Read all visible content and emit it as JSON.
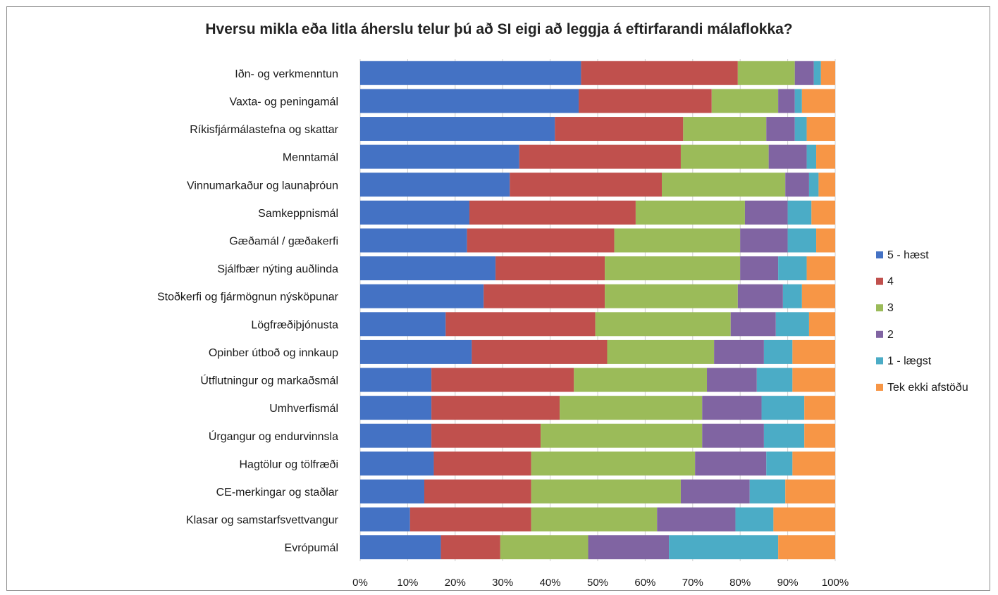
{
  "chart_data": {
    "type": "bar",
    "orientation": "horizontal",
    "stacked": "percent",
    "title": "Hversu mikla eða litla áherslu telur þú að SI eigi að leggja á eftirfarandi málaflokka?",
    "categories": [
      "Iðn- og verkmenntun",
      "Vaxta- og peningamál",
      "Ríkisfjármálastefna og skattar",
      "Menntamál",
      "Vinnumarkaður og launaþróun",
      "Samkeppnismál",
      "Gæðamál / gæðakerfi",
      "Sjálfbær nýting auðlinda",
      "Stoðkerfi og fjármögnun nýsköpunar",
      "Lögfræðiþjónusta",
      "Opinber útboð og innkaup",
      "Útflutningur og markaðsmál",
      "Umhverfismál",
      "Úrgangur og endurvinnsla",
      "Hagtölur og tölfræði",
      "CE-merkingar og staðlar",
      "Klasar og samstarfsvettvangur",
      "Evrópumál"
    ],
    "series": [
      {
        "name": "5 - hæst",
        "color": "#4472c4",
        "values": [
          46.5,
          46,
          41,
          33.5,
          31.5,
          23,
          22.5,
          28.5,
          26,
          18,
          23.5,
          15,
          15,
          15,
          15.5,
          13.5,
          10.5,
          17
        ]
      },
      {
        "name": "4",
        "color": "#c0504d",
        "values": [
          33,
          28,
          27,
          34,
          32,
          35,
          31,
          23,
          25.5,
          31.5,
          28.5,
          30,
          27,
          23,
          20.5,
          22.5,
          25.5,
          12.5
        ]
      },
      {
        "name": "3",
        "color": "#9bbb59",
        "values": [
          12,
          14,
          17.5,
          18.5,
          26,
          23,
          26.5,
          28.5,
          28,
          28.5,
          22.5,
          28,
          30,
          34,
          34.5,
          31.5,
          26.5,
          18.5
        ]
      },
      {
        "name": "2",
        "color": "#8064a2",
        "values": [
          4,
          3.5,
          6,
          8,
          5,
          9,
          10,
          8,
          9.5,
          9.5,
          10.5,
          10.5,
          12.5,
          13,
          15,
          14.5,
          16.5,
          17
        ]
      },
      {
        "name": "1 - lægst",
        "color": "#4bacc6",
        "values": [
          1.5,
          1.5,
          2.5,
          2,
          2,
          5,
          6,
          6,
          4,
          7,
          6,
          7.5,
          9,
          8.5,
          5.5,
          7.5,
          8,
          23
        ]
      },
      {
        "name": "Tek ekki afstöðu",
        "color": "#f79646",
        "values": [
          3,
          7,
          6,
          4,
          3.5,
          5,
          4,
          6,
          7,
          5.5,
          9,
          9,
          6.5,
          6.5,
          9,
          10.5,
          13,
          12
        ]
      }
    ],
    "xlim": [
      0,
      100
    ],
    "xticks": [
      "0%",
      "10%",
      "20%",
      "30%",
      "40%",
      "50%",
      "60%",
      "70%",
      "80%",
      "90%",
      "100%"
    ],
    "grid": true,
    "legend_position": "right"
  }
}
